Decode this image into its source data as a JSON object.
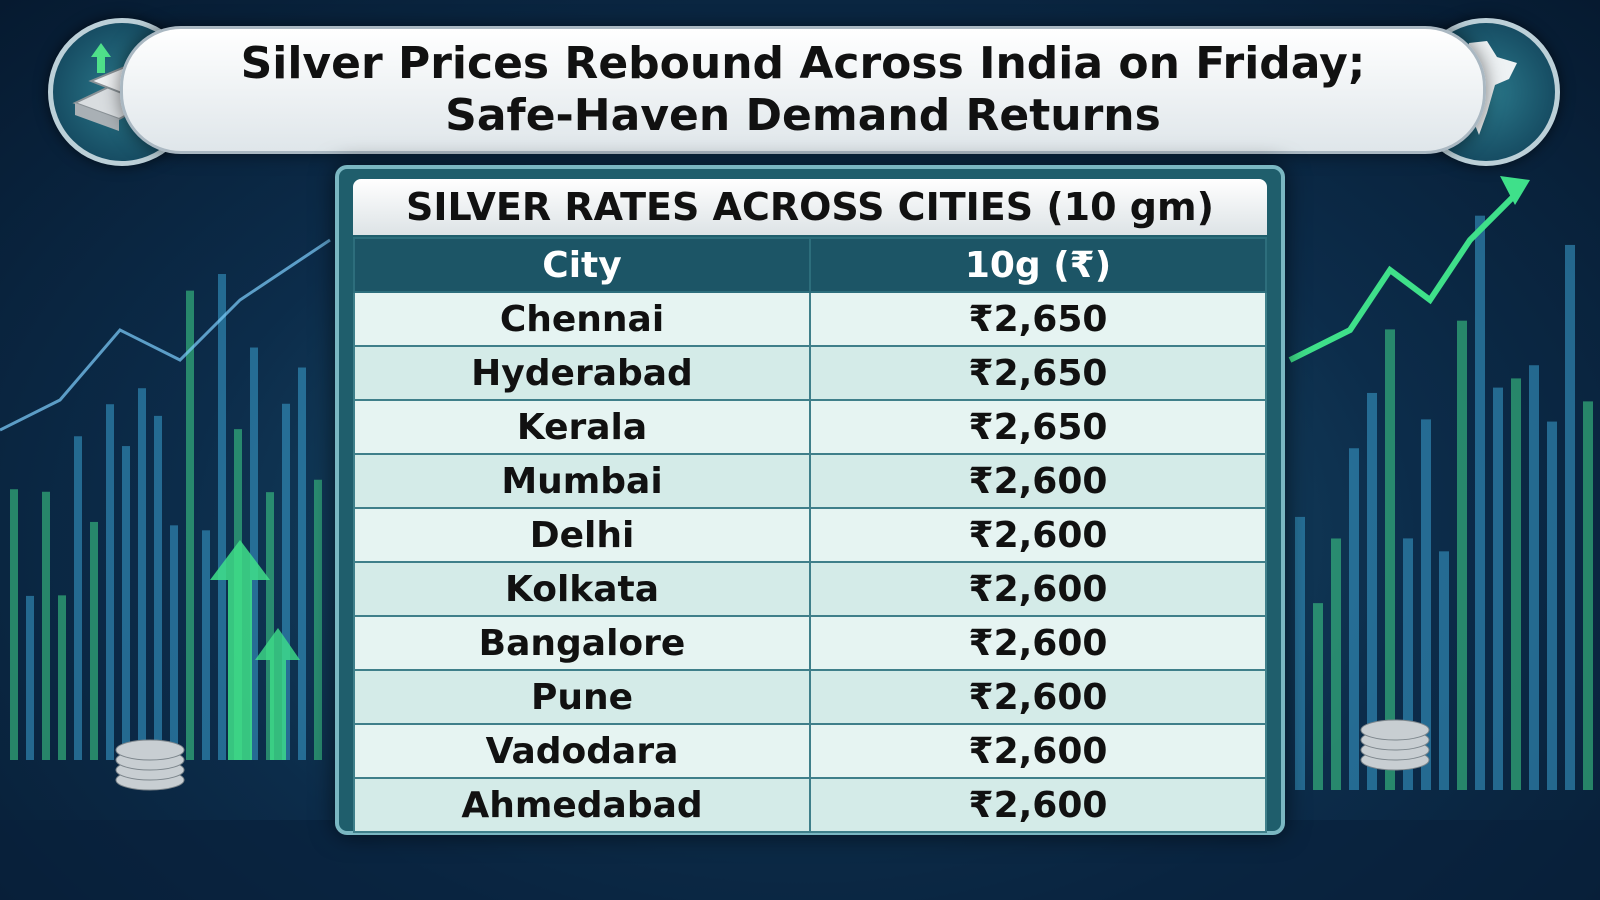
{
  "header": {
    "title_lines": [
      "Silver Prices Rebound Across India on Friday;",
      "Safe-Haven Demand Returns"
    ]
  },
  "table": {
    "title": "SILVER RATES ACROSS CITIES (10 gm)",
    "columns": [
      "City",
      "10g (₹)"
    ],
    "rows": [
      [
        "Chennai",
        "₹2,650"
      ],
      [
        "Hyderabad",
        "₹2,650"
      ],
      [
        "Kerala",
        "₹2,650"
      ],
      [
        "Mumbai",
        "₹2,600"
      ],
      [
        "Delhi",
        "₹2,600"
      ],
      [
        "Kolkata",
        "₹2,600"
      ],
      [
        "Bangalore",
        "₹2,600"
      ],
      [
        "Pune",
        "₹2,600"
      ],
      [
        "Vadodara",
        "₹2,600"
      ],
      [
        "Ahmedabad",
        "₹2,600"
      ]
    ]
  }
}
